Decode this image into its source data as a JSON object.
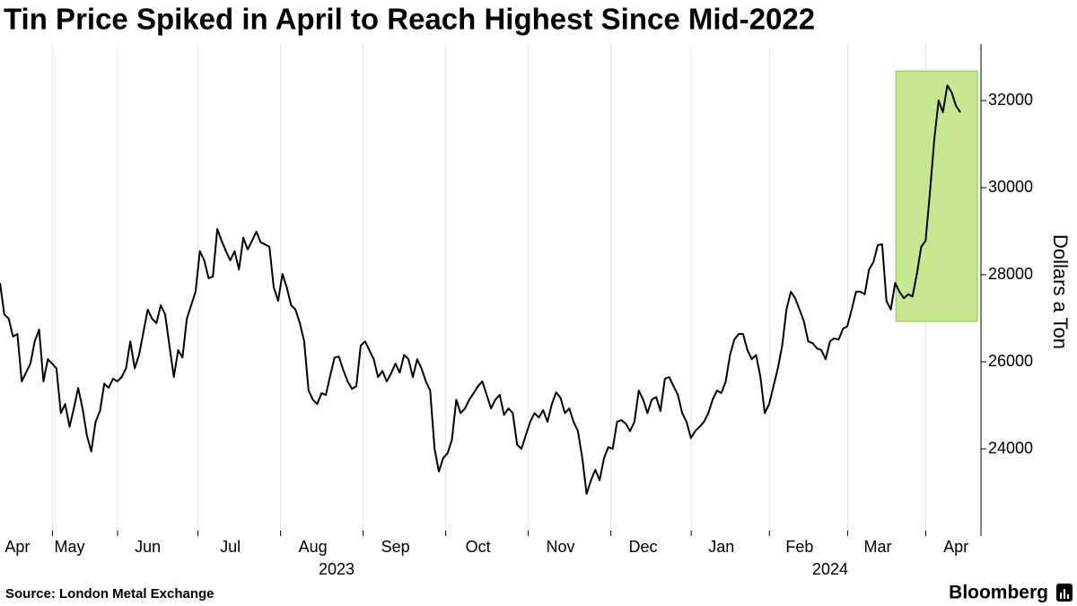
{
  "chart_data": {
    "type": "line",
    "title": "Tin Price Spiked in April to Reach Highest Since Mid-2022",
    "y_label": "Dollars a Ton",
    "source": "Source: London Metal Exchange",
    "brand": "Bloomberg",
    "year_labels": [
      "2023",
      "2024"
    ],
    "categories": [
      null,
      null,
      null,
      null,
      "Apr",
      null,
      null,
      null,
      null,
      null,
      null,
      null,
      null,
      null,
      null,
      null,
      "May",
      null,
      null,
      null,
      null,
      null,
      null,
      null,
      null,
      null,
      null,
      null,
      null,
      null,
      null,
      null,
      null,
      null,
      "Jun",
      null,
      null,
      null,
      null,
      null,
      null,
      null,
      null,
      null,
      null,
      null,
      null,
      null,
      null,
      null,
      null,
      null,
      null,
      "Jul",
      null,
      null,
      null,
      null,
      null,
      null,
      null,
      null,
      null,
      null,
      null,
      null,
      null,
      null,
      null,
      null,
      null,
      null,
      "Aug",
      null,
      null,
      null,
      null,
      null,
      null,
      null,
      null,
      null,
      null,
      null,
      null,
      null,
      null,
      null,
      null,
      null,
      null,
      "Sep",
      null,
      null,
      null,
      null,
      null,
      null,
      null,
      null,
      null,
      null,
      null,
      null,
      null,
      null,
      null,
      null,
      null,
      null,
      "Oct",
      null,
      null,
      null,
      null,
      null,
      null,
      null,
      null,
      null,
      null,
      null,
      null,
      null,
      null,
      null,
      null,
      null,
      null,
      "Nov",
      null,
      null,
      null,
      null,
      null,
      null,
      null,
      null,
      null,
      null,
      null,
      null,
      null,
      null,
      null,
      null,
      null,
      null,
      "Dec",
      null,
      null,
      null,
      null,
      null,
      null,
      null,
      null,
      null,
      null,
      null,
      null,
      null,
      null,
      null,
      null,
      null,
      "Jan",
      null,
      null,
      null,
      null,
      null,
      null,
      null,
      null,
      null,
      null,
      null,
      null,
      null,
      null,
      null,
      null,
      null,
      "Feb",
      null,
      null,
      null,
      null,
      null,
      null,
      null,
      null,
      null,
      null,
      null,
      null,
      null,
      null,
      null,
      null,
      null,
      "Mar",
      null,
      null,
      null,
      null,
      null,
      null,
      null,
      null,
      null,
      null,
      null,
      null,
      null,
      null,
      null,
      null,
      null,
      "Apr",
      null
    ],
    "series": [
      {
        "name": "Tin",
        "color": "#000000",
        "values": [
          27810,
          27090,
          26990,
          26580,
          26640,
          25550,
          25750,
          25960,
          26470,
          26740,
          25550,
          26060,
          25960,
          25850,
          24820,
          25030,
          24510,
          24930,
          25400,
          24930,
          24310,
          23940,
          24620,
          24870,
          25500,
          25400,
          25610,
          25550,
          25650,
          25850,
          26470,
          25850,
          26160,
          26680,
          27200,
          26990,
          26890,
          27300,
          27090,
          26370,
          25650,
          26270,
          26100,
          26990,
          27300,
          27610,
          28540,
          28330,
          27920,
          27960,
          29050,
          28780,
          28540,
          28330,
          28540,
          28120,
          28850,
          28580,
          28780,
          28990,
          28740,
          28700,
          28640,
          27710,
          27400,
          28020,
          27710,
          27300,
          27200,
          26890,
          26470,
          25340,
          25130,
          25030,
          25280,
          25240,
          25690,
          26100,
          26120,
          25810,
          25550,
          25380,
          25440,
          26370,
          26470,
          26270,
          26060,
          25650,
          25790,
          25550,
          25730,
          25960,
          25750,
          26160,
          26060,
          25650,
          26060,
          25850,
          25550,
          25340,
          24000,
          23480,
          23790,
          23900,
          24210,
          25130,
          24820,
          24930,
          25130,
          25280,
          25440,
          25550,
          25240,
          24930,
          25130,
          25240,
          24780,
          24930,
          24820,
          24100,
          24000,
          24310,
          24620,
          24820,
          24720,
          24890,
          24620,
          25030,
          25300,
          25170,
          24820,
          24930,
          24620,
          24410,
          23790,
          22970,
          23280,
          23520,
          23280,
          23790,
          24040,
          24000,
          24620,
          24660,
          24580,
          24410,
          24620,
          25340,
          25130,
          24820,
          25130,
          25190,
          24870,
          25610,
          25650,
          25440,
          25240,
          24820,
          24620,
          24250,
          24410,
          24510,
          24620,
          24820,
          25130,
          25340,
          25280,
          25550,
          26160,
          26510,
          26640,
          26640,
          26270,
          26060,
          26160,
          25650,
          24820,
          25030,
          25440,
          25850,
          26370,
          27200,
          27610,
          27460,
          27200,
          26930,
          26470,
          26430,
          26310,
          26270,
          26060,
          26470,
          26540,
          26510,
          26760,
          26820,
          27200,
          27610,
          27610,
          27550,
          28120,
          28290,
          28680,
          28700,
          27400,
          27200,
          27810,
          27610,
          27460,
          27550,
          27500,
          28020,
          28640,
          28780,
          29880,
          31110,
          32000,
          31730,
          32350,
          32190,
          31880,
          31730
        ]
      }
    ],
    "highlight": {
      "color": "#c8e88f",
      "border": "#8fc43f",
      "from": 207,
      "to": 221,
      "ymin": 26930,
      "ymax": 32680
    },
    "ylim": [
      22000,
      33300
    ],
    "yticks": [
      24000,
      26000,
      28000,
      30000,
      32000
    ],
    "y_axis_side": "right",
    "grid": "vertical"
  }
}
